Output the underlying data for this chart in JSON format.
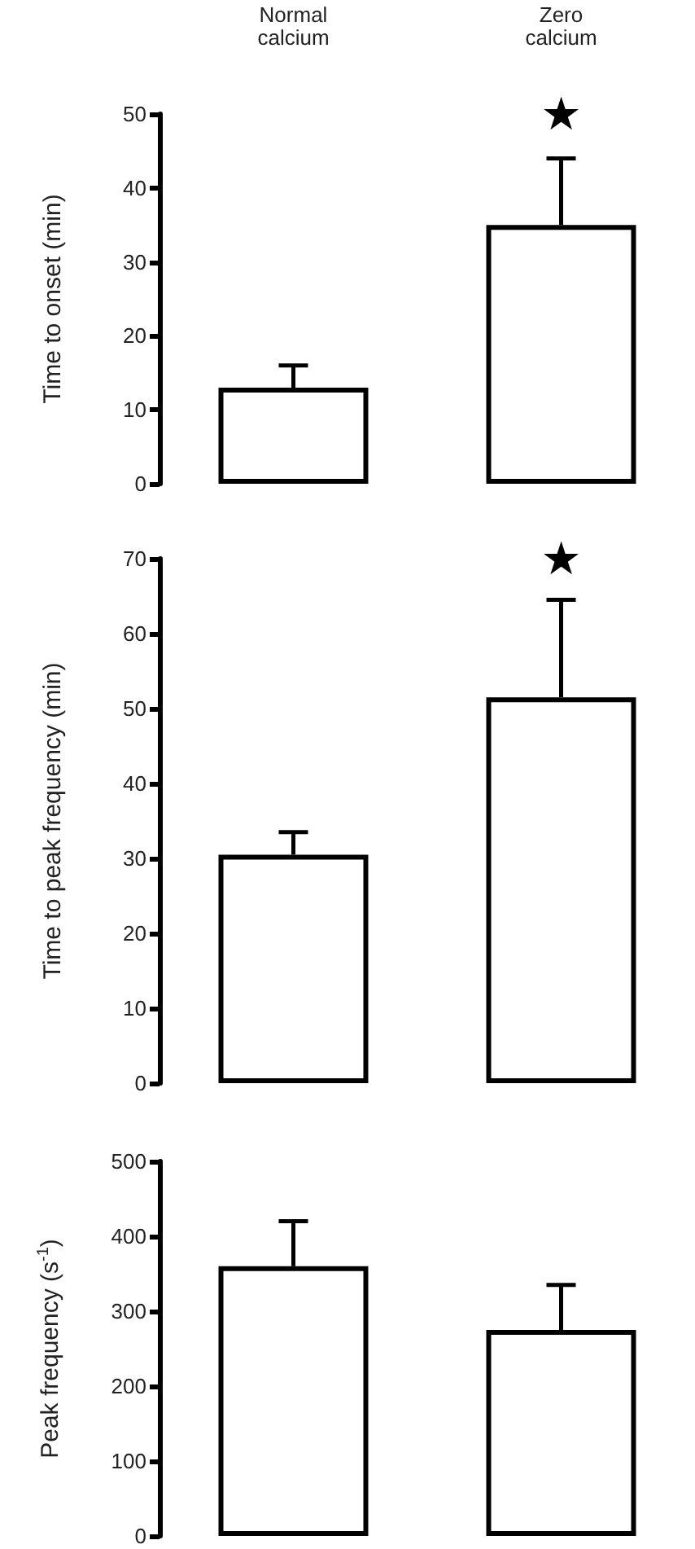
{
  "chart_data": [
    {
      "type": "bar",
      "categories": [
        "Normal\ncalcium",
        "Zero\ncalcium"
      ],
      "ylabel": "Time to onset (min)",
      "values": [
        13,
        35
      ],
      "errors": [
        [
          13,
          16
        ],
        [
          35,
          44
        ]
      ],
      "color": "#ffffff",
      "ylim": [
        0,
        50
      ],
      "yticks": [
        0,
        10,
        20,
        30,
        40,
        50
      ],
      "annotations": [
        "★"
      ]
    },
    {
      "type": "bar",
      "categories": [
        null,
        null
      ],
      "ylabel": "Time to peak frequency (min)",
      "values": [
        30.5,
        51.5
      ],
      "errors": [
        [
          30.5,
          33.5
        ],
        [
          51.5,
          64.5
        ]
      ],
      "color": "#ffffff",
      "ylim": [
        0,
        70
      ],
      "yticks": [
        0,
        10,
        20,
        30,
        40,
        50,
        60,
        70
      ],
      "tick_labels": "y",
      "annotations": [
        "★"
      ]
    },
    {
      "type": "bar",
      "categories": [
        null,
        null
      ],
      "ylabel": "Peak frequency (s$^{-1}$)",
      "values": [
        360,
        275
      ],
      "errors": [
        [
          360,
          420
        ],
        [
          275,
          335
        ]
      ],
      "color": "#ffffff",
      "ylim": [
        0,
        500
      ],
      "yticks": [
        0,
        100,
        200,
        300,
        400,
        500
      ],
      "tick_labels": "y"
    }
  ]
}
